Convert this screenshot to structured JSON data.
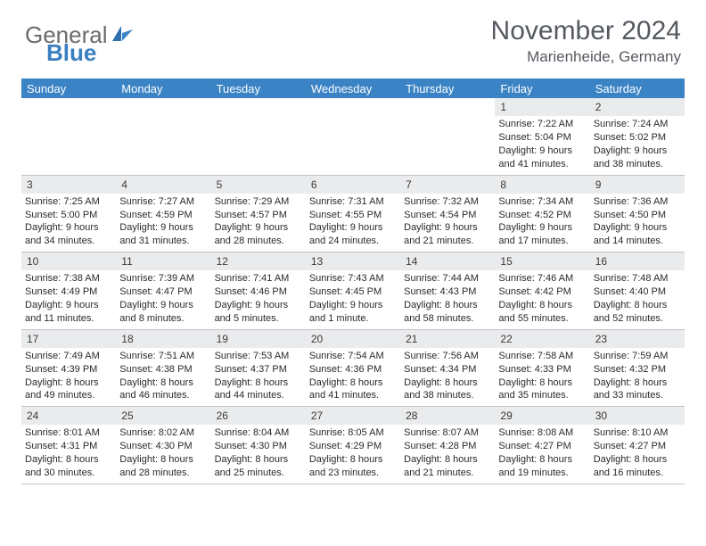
{
  "logo": {
    "general": "General",
    "blue": "Blue"
  },
  "title": "November 2024",
  "location": "Marienheide, Germany",
  "colors": {
    "header_bg": "#3a83c4",
    "header_text": "#ffffff",
    "daynum_bg": "#e9ebed",
    "text": "#2a2a2a",
    "title_color": "#555a60",
    "logo_gray": "#6b6b6b",
    "logo_blue": "#3a7fbf",
    "border": "#c0c3c6"
  },
  "day_labels": [
    "Sunday",
    "Monday",
    "Tuesday",
    "Wednesday",
    "Thursday",
    "Friday",
    "Saturday"
  ],
  "weeks": [
    [
      {
        "n": "",
        "sr": "",
        "ss": "",
        "dl1": "",
        "dl2": ""
      },
      {
        "n": "",
        "sr": "",
        "ss": "",
        "dl1": "",
        "dl2": ""
      },
      {
        "n": "",
        "sr": "",
        "ss": "",
        "dl1": "",
        "dl2": ""
      },
      {
        "n": "",
        "sr": "",
        "ss": "",
        "dl1": "",
        "dl2": ""
      },
      {
        "n": "",
        "sr": "",
        "ss": "",
        "dl1": "",
        "dl2": ""
      },
      {
        "n": "1",
        "sr": "Sunrise: 7:22 AM",
        "ss": "Sunset: 5:04 PM",
        "dl1": "Daylight: 9 hours",
        "dl2": "and 41 minutes."
      },
      {
        "n": "2",
        "sr": "Sunrise: 7:24 AM",
        "ss": "Sunset: 5:02 PM",
        "dl1": "Daylight: 9 hours",
        "dl2": "and 38 minutes."
      }
    ],
    [
      {
        "n": "3",
        "sr": "Sunrise: 7:25 AM",
        "ss": "Sunset: 5:00 PM",
        "dl1": "Daylight: 9 hours",
        "dl2": "and 34 minutes."
      },
      {
        "n": "4",
        "sr": "Sunrise: 7:27 AM",
        "ss": "Sunset: 4:59 PM",
        "dl1": "Daylight: 9 hours",
        "dl2": "and 31 minutes."
      },
      {
        "n": "5",
        "sr": "Sunrise: 7:29 AM",
        "ss": "Sunset: 4:57 PM",
        "dl1": "Daylight: 9 hours",
        "dl2": "and 28 minutes."
      },
      {
        "n": "6",
        "sr": "Sunrise: 7:31 AM",
        "ss": "Sunset: 4:55 PM",
        "dl1": "Daylight: 9 hours",
        "dl2": "and 24 minutes."
      },
      {
        "n": "7",
        "sr": "Sunrise: 7:32 AM",
        "ss": "Sunset: 4:54 PM",
        "dl1": "Daylight: 9 hours",
        "dl2": "and 21 minutes."
      },
      {
        "n": "8",
        "sr": "Sunrise: 7:34 AM",
        "ss": "Sunset: 4:52 PM",
        "dl1": "Daylight: 9 hours",
        "dl2": "and 17 minutes."
      },
      {
        "n": "9",
        "sr": "Sunrise: 7:36 AM",
        "ss": "Sunset: 4:50 PM",
        "dl1": "Daylight: 9 hours",
        "dl2": "and 14 minutes."
      }
    ],
    [
      {
        "n": "10",
        "sr": "Sunrise: 7:38 AM",
        "ss": "Sunset: 4:49 PM",
        "dl1": "Daylight: 9 hours",
        "dl2": "and 11 minutes."
      },
      {
        "n": "11",
        "sr": "Sunrise: 7:39 AM",
        "ss": "Sunset: 4:47 PM",
        "dl1": "Daylight: 9 hours",
        "dl2": "and 8 minutes."
      },
      {
        "n": "12",
        "sr": "Sunrise: 7:41 AM",
        "ss": "Sunset: 4:46 PM",
        "dl1": "Daylight: 9 hours",
        "dl2": "and 5 minutes."
      },
      {
        "n": "13",
        "sr": "Sunrise: 7:43 AM",
        "ss": "Sunset: 4:45 PM",
        "dl1": "Daylight: 9 hours",
        "dl2": "and 1 minute."
      },
      {
        "n": "14",
        "sr": "Sunrise: 7:44 AM",
        "ss": "Sunset: 4:43 PM",
        "dl1": "Daylight: 8 hours",
        "dl2": "and 58 minutes."
      },
      {
        "n": "15",
        "sr": "Sunrise: 7:46 AM",
        "ss": "Sunset: 4:42 PM",
        "dl1": "Daylight: 8 hours",
        "dl2": "and 55 minutes."
      },
      {
        "n": "16",
        "sr": "Sunrise: 7:48 AM",
        "ss": "Sunset: 4:40 PM",
        "dl1": "Daylight: 8 hours",
        "dl2": "and 52 minutes."
      }
    ],
    [
      {
        "n": "17",
        "sr": "Sunrise: 7:49 AM",
        "ss": "Sunset: 4:39 PM",
        "dl1": "Daylight: 8 hours",
        "dl2": "and 49 minutes."
      },
      {
        "n": "18",
        "sr": "Sunrise: 7:51 AM",
        "ss": "Sunset: 4:38 PM",
        "dl1": "Daylight: 8 hours",
        "dl2": "and 46 minutes."
      },
      {
        "n": "19",
        "sr": "Sunrise: 7:53 AM",
        "ss": "Sunset: 4:37 PM",
        "dl1": "Daylight: 8 hours",
        "dl2": "and 44 minutes."
      },
      {
        "n": "20",
        "sr": "Sunrise: 7:54 AM",
        "ss": "Sunset: 4:36 PM",
        "dl1": "Daylight: 8 hours",
        "dl2": "and 41 minutes."
      },
      {
        "n": "21",
        "sr": "Sunrise: 7:56 AM",
        "ss": "Sunset: 4:34 PM",
        "dl1": "Daylight: 8 hours",
        "dl2": "and 38 minutes."
      },
      {
        "n": "22",
        "sr": "Sunrise: 7:58 AM",
        "ss": "Sunset: 4:33 PM",
        "dl1": "Daylight: 8 hours",
        "dl2": "and 35 minutes."
      },
      {
        "n": "23",
        "sr": "Sunrise: 7:59 AM",
        "ss": "Sunset: 4:32 PM",
        "dl1": "Daylight: 8 hours",
        "dl2": "and 33 minutes."
      }
    ],
    [
      {
        "n": "24",
        "sr": "Sunrise: 8:01 AM",
        "ss": "Sunset: 4:31 PM",
        "dl1": "Daylight: 8 hours",
        "dl2": "and 30 minutes."
      },
      {
        "n": "25",
        "sr": "Sunrise: 8:02 AM",
        "ss": "Sunset: 4:30 PM",
        "dl1": "Daylight: 8 hours",
        "dl2": "and 28 minutes."
      },
      {
        "n": "26",
        "sr": "Sunrise: 8:04 AM",
        "ss": "Sunset: 4:30 PM",
        "dl1": "Daylight: 8 hours",
        "dl2": "and 25 minutes."
      },
      {
        "n": "27",
        "sr": "Sunrise: 8:05 AM",
        "ss": "Sunset: 4:29 PM",
        "dl1": "Daylight: 8 hours",
        "dl2": "and 23 minutes."
      },
      {
        "n": "28",
        "sr": "Sunrise: 8:07 AM",
        "ss": "Sunset: 4:28 PM",
        "dl1": "Daylight: 8 hours",
        "dl2": "and 21 minutes."
      },
      {
        "n": "29",
        "sr": "Sunrise: 8:08 AM",
        "ss": "Sunset: 4:27 PM",
        "dl1": "Daylight: 8 hours",
        "dl2": "and 19 minutes."
      },
      {
        "n": "30",
        "sr": "Sunrise: 8:10 AM",
        "ss": "Sunset: 4:27 PM",
        "dl1": "Daylight: 8 hours",
        "dl2": "and 16 minutes."
      }
    ]
  ]
}
